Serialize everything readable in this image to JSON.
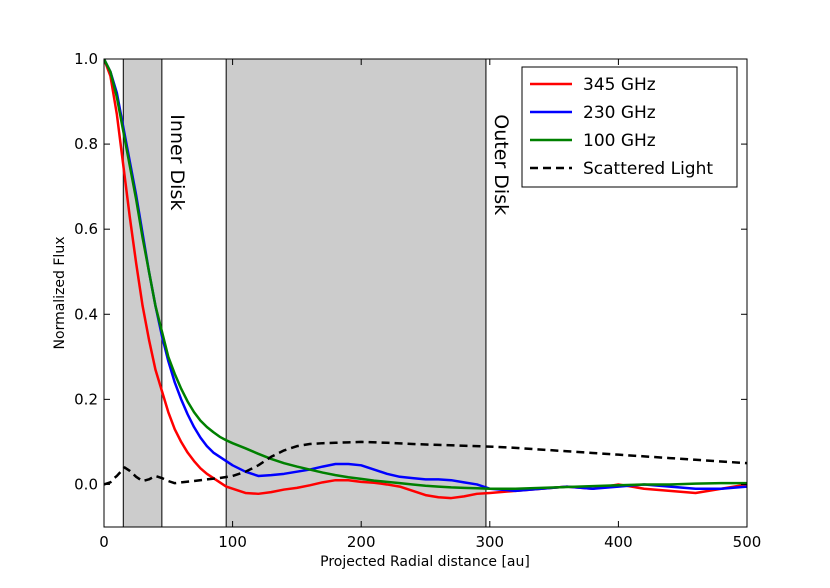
{
  "chart_data": {
    "type": "line",
    "title": "",
    "xlabel": "Projected Radial distance [au]",
    "ylabel": "Normalized Flux",
    "xlim": [
      0,
      500
    ],
    "ylim": [
      -0.1,
      1.0
    ],
    "xticks": [
      0,
      100,
      200,
      300,
      400,
      500
    ],
    "xtick_labels": [
      "0",
      "100",
      "200",
      "300",
      "400",
      "500"
    ],
    "yticks": [
      0.0,
      0.2,
      0.4,
      0.6,
      0.8,
      1.0
    ],
    "ytick_labels": [
      "0.0",
      "0.2",
      "0.4",
      "0.6",
      "0.8",
      "1.0"
    ],
    "grid": false,
    "legend_position": "top-right",
    "shaded_regions": [
      {
        "name": "inner-disk",
        "label": "Inner Disk",
        "x0": 15,
        "x1": 45,
        "color": "#cccccc"
      },
      {
        "name": "outer-disk",
        "label": "Outer Disk",
        "x0": 95,
        "x1": 297,
        "color": "#cccccc"
      }
    ],
    "series": [
      {
        "name": "345 GHz",
        "color": "#ff0000",
        "dash": "solid",
        "x": [
          0,
          5,
          10,
          15,
          20,
          25,
          30,
          35,
          40,
          45,
          50,
          55,
          60,
          65,
          70,
          75,
          80,
          85,
          90,
          95,
          100,
          110,
          120,
          130,
          140,
          150,
          160,
          170,
          180,
          190,
          200,
          210,
          220,
          230,
          240,
          250,
          260,
          270,
          280,
          290,
          300,
          320,
          340,
          360,
          380,
          400,
          420,
          440,
          460,
          480,
          500
        ],
        "y": [
          1.0,
          0.96,
          0.87,
          0.75,
          0.63,
          0.52,
          0.42,
          0.34,
          0.27,
          0.22,
          0.17,
          0.13,
          0.1,
          0.075,
          0.055,
          0.038,
          0.025,
          0.015,
          0.005,
          -0.005,
          -0.01,
          -0.02,
          -0.022,
          -0.018,
          -0.012,
          -0.008,
          -0.002,
          0.005,
          0.01,
          0.01,
          0.006,
          0.004,
          0.0,
          -0.005,
          -0.015,
          -0.025,
          -0.03,
          -0.032,
          -0.028,
          -0.022,
          -0.02,
          -0.015,
          -0.01,
          -0.005,
          -0.01,
          0.0,
          -0.01,
          -0.015,
          -0.02,
          -0.01,
          0.0
        ]
      },
      {
        "name": "230 GHz",
        "color": "#0000ff",
        "dash": "solid",
        "x": [
          0,
          5,
          10,
          15,
          20,
          25,
          30,
          35,
          40,
          45,
          50,
          55,
          60,
          65,
          70,
          75,
          80,
          85,
          90,
          95,
          100,
          110,
          120,
          130,
          140,
          150,
          160,
          170,
          180,
          190,
          200,
          210,
          220,
          230,
          240,
          250,
          260,
          270,
          280,
          290,
          300,
          320,
          340,
          360,
          380,
          400,
          420,
          440,
          460,
          480,
          500
        ],
        "y": [
          1.0,
          0.97,
          0.92,
          0.84,
          0.76,
          0.68,
          0.59,
          0.5,
          0.42,
          0.35,
          0.29,
          0.24,
          0.2,
          0.165,
          0.135,
          0.11,
          0.09,
          0.075,
          0.065,
          0.055,
          0.045,
          0.03,
          0.02,
          0.022,
          0.025,
          0.03,
          0.035,
          0.042,
          0.048,
          0.048,
          0.045,
          0.035,
          0.025,
          0.018,
          0.015,
          0.012,
          0.012,
          0.01,
          0.005,
          0.0,
          -0.01,
          -0.015,
          -0.01,
          -0.005,
          -0.01,
          -0.005,
          0.0,
          -0.005,
          -0.01,
          -0.01,
          -0.005
        ]
      },
      {
        "name": "100 GHz",
        "color": "#008000",
        "dash": "solid",
        "x": [
          0,
          5,
          10,
          15,
          20,
          25,
          30,
          35,
          40,
          45,
          50,
          55,
          60,
          65,
          70,
          75,
          80,
          85,
          90,
          95,
          100,
          110,
          120,
          130,
          140,
          150,
          160,
          170,
          180,
          190,
          200,
          210,
          220,
          230,
          240,
          250,
          260,
          270,
          280,
          290,
          300,
          320,
          340,
          360,
          380,
          400,
          420,
          440,
          460,
          480,
          500
        ],
        "y": [
          1.0,
          0.97,
          0.91,
          0.83,
          0.75,
          0.67,
          0.58,
          0.5,
          0.42,
          0.36,
          0.3,
          0.26,
          0.225,
          0.195,
          0.17,
          0.15,
          0.135,
          0.123,
          0.112,
          0.104,
          0.097,
          0.085,
          0.072,
          0.06,
          0.05,
          0.042,
          0.035,
          0.028,
          0.022,
          0.017,
          0.013,
          0.009,
          0.006,
          0.003,
          0.0,
          -0.003,
          -0.005,
          -0.007,
          -0.008,
          -0.009,
          -0.01,
          -0.01,
          -0.008,
          -0.006,
          -0.004,
          -0.002,
          0.0,
          0.0,
          0.002,
          0.003,
          0.003
        ]
      },
      {
        "name": "Scattered Light",
        "color": "#000000",
        "dash": "dashed",
        "x": [
          0,
          5,
          8,
          10,
          13,
          16,
          20,
          25,
          30,
          35,
          40,
          45,
          50,
          55,
          60,
          70,
          80,
          90,
          100,
          110,
          120,
          130,
          140,
          150,
          160,
          170,
          180,
          190,
          200,
          220,
          240,
          260,
          280,
          300,
          320,
          340,
          360,
          380,
          400,
          420,
          440,
          460,
          480,
          500
        ],
        "y": [
          0.0,
          0.005,
          0.015,
          0.02,
          0.03,
          0.04,
          0.032,
          0.018,
          0.008,
          0.012,
          0.02,
          0.015,
          0.008,
          0.003,
          0.005,
          0.008,
          0.012,
          0.015,
          0.02,
          0.03,
          0.045,
          0.065,
          0.08,
          0.09,
          0.095,
          0.097,
          0.098,
          0.099,
          0.1,
          0.098,
          0.095,
          0.093,
          0.091,
          0.089,
          0.086,
          0.082,
          0.078,
          0.074,
          0.07,
          0.066,
          0.062,
          0.058,
          0.054,
          0.05
        ]
      }
    ]
  }
}
